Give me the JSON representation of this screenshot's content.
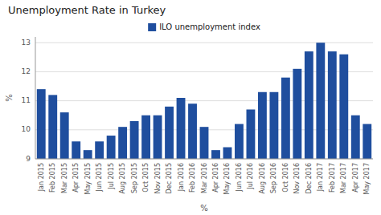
{
  "chart_data": {
    "type": "bar",
    "title": "Unemployment Rate in Turkey",
    "xlabel": "%",
    "ylabel": "%",
    "categories": [
      "Jan 2015",
      "Feb 2015",
      "Mar 2015",
      "Apr 2015",
      "May 2015",
      "Jun 2015",
      "Jul 2015",
      "Aug 2015",
      "Sep 2015",
      "Oct 2015",
      "Nov 2015",
      "Dec 2015",
      "Jan 2016",
      "Feb 2016",
      "Mar 2016",
      "Apr 2016",
      "May 2016",
      "Jun 2016",
      "Jul 2016",
      "Aug 2016",
      "Sep 2016",
      "Oct 2016",
      "Nov 2016",
      "Dec 2016",
      "Jan 2017",
      "Feb 2017",
      "Mar 2017",
      "Apr 2017",
      "May 2017"
    ],
    "series": [
      {
        "name": "ILO unemployment index",
        "color": "#1f4e9e",
        "values": [
          11.4,
          11.2,
          10.6,
          9.6,
          9.3,
          9.6,
          9.8,
          10.1,
          10.3,
          10.5,
          10.5,
          10.8,
          11.1,
          10.9,
          10.1,
          9.3,
          9.4,
          10.2,
          10.7,
          11.3,
          11.3,
          11.8,
          12.1,
          12.7,
          13.0,
          12.7,
          12.6,
          10.5,
          10.2
        ]
      }
    ],
    "ylim": [
      9,
      13.2
    ],
    "yticks": [
      9,
      10,
      11,
      12,
      13
    ],
    "grid": true,
    "legend": "top"
  }
}
